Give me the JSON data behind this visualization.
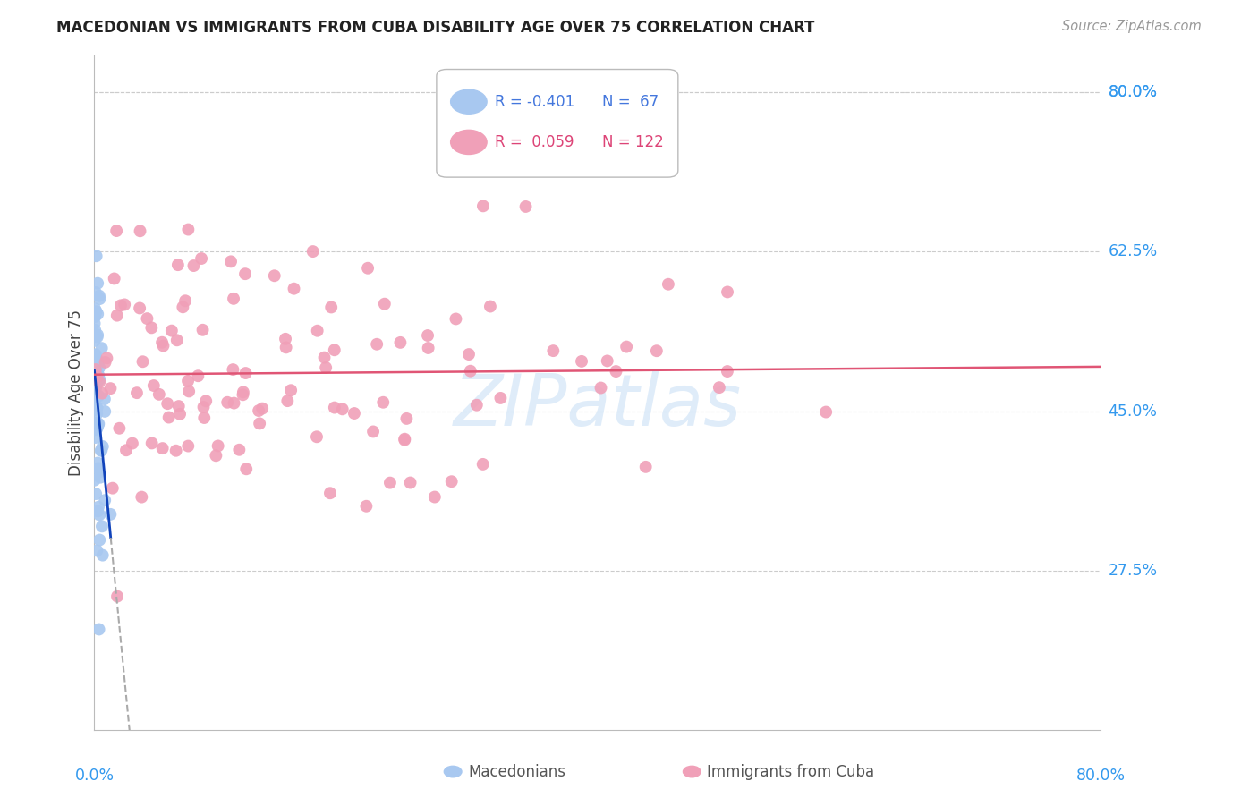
{
  "title": "MACEDONIAN VS IMMIGRANTS FROM CUBA DISABILITY AGE OVER 75 CORRELATION CHART",
  "source": "Source: ZipAtlas.com",
  "ylabel": "Disability Age Over 75",
  "ytick_values": [
    0.8,
    0.625,
    0.45,
    0.275
  ],
  "ytick_labels": [
    "80.0%",
    "62.5%",
    "45.0%",
    "27.5%"
  ],
  "xmin": 0.0,
  "xmax": 0.8,
  "ymin": 0.1,
  "ymax": 0.84,
  "macedonian_color": "#a8c8f0",
  "cuba_color": "#f0a0b8",
  "macedonian_line_color": "#1144bb",
  "cuba_line_color": "#e05575",
  "grid_color": "#cccccc",
  "background_color": "#ffffff",
  "watermark": "ZIPatlas",
  "legend_R1": "R = -0.401",
  "legend_N1": "N =  67",
  "legend_R2": "R =  0.059",
  "legend_N2": "N = 122",
  "legend_color1": "#4477dd",
  "legend_color2": "#dd4477",
  "legend_swatch1": "#a8c8f0",
  "legend_swatch2": "#f0a0b8"
}
